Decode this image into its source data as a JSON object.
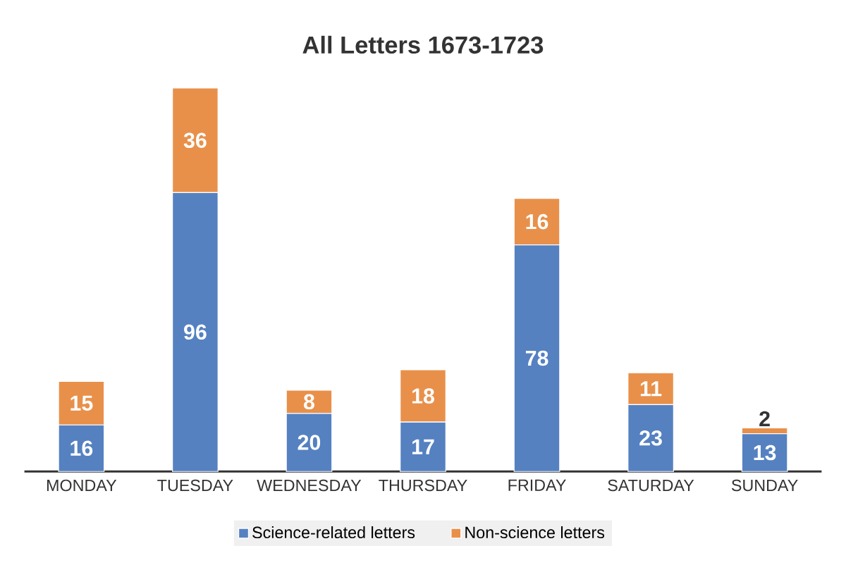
{
  "chart_data": {
    "type": "bar",
    "title": "All Letters 1673-1723",
    "stacked": true,
    "data_labels": true,
    "legend": "bottom",
    "categories": [
      "MONDAY",
      "TUESDAY",
      "WEDNESDAY",
      "THURSDAY",
      "FRIDAY",
      "SATURDAY",
      "SUNDAY"
    ],
    "series": [
      {
        "name": "Science-related letters",
        "color": "#5581c1",
        "values": [
          16,
          96,
          20,
          17,
          78,
          23,
          13
        ]
      },
      {
        "name": "Non-science letters",
        "color": "#e8904a",
        "values": [
          15,
          36,
          8,
          18,
          16,
          11,
          2
        ]
      }
    ]
  }
}
